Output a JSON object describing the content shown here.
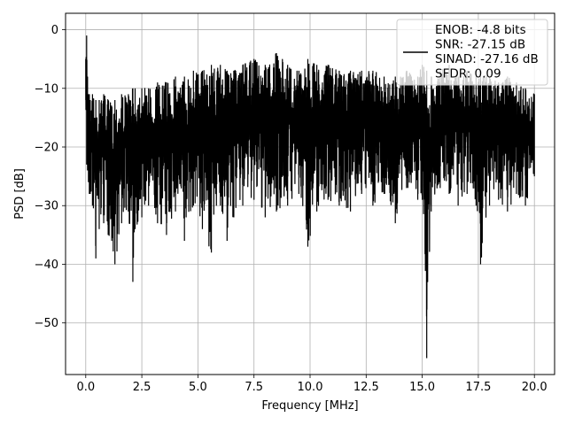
{
  "chart_data": {
    "type": "line",
    "title": "",
    "xlabel": "Frequency [MHz]",
    "ylabel": "PSD [dB]",
    "xlim": [
      -0.9,
      20.9
    ],
    "ylim": [
      -58.8,
      2.8
    ],
    "x_ticks": [
      0.0,
      2.5,
      5.0,
      7.5,
      10.0,
      12.5,
      15.0,
      17.5,
      20.0
    ],
    "x_tick_labels": [
      "0.0",
      "2.5",
      "5.0",
      "7.5",
      "10.0",
      "12.5",
      "15.0",
      "17.5",
      "20.0"
    ],
    "y_ticks": [
      0,
      -10,
      -20,
      -30,
      -40,
      -50
    ],
    "y_tick_labels": [
      "0",
      "−10",
      "−20",
      "−30",
      "−40",
      "−50"
    ],
    "grid": true,
    "legend_position": "top-right",
    "series": [
      {
        "name": "ENOB: -4.8 bits\nSNR: -27.15 dB\nSINAD: -27.16 dB\nSFDR: 0.09",
        "color": "#000000",
        "x": [
          0.0,
          0.04,
          0.08,
          0.12,
          0.16,
          0.2,
          0.3,
          0.45,
          0.6,
          0.8,
          1.0,
          1.3,
          1.6,
          1.9,
          2.1,
          2.2,
          2.5,
          2.8,
          3.2,
          3.6,
          4.0,
          4.4,
          4.8,
          5.2,
          5.6,
          6.0,
          6.3,
          6.6,
          7.0,
          7.5,
          8.0,
          8.5,
          9.0,
          9.5,
          9.9,
          10.3,
          10.8,
          11.3,
          11.8,
          12.3,
          12.8,
          13.3,
          13.8,
          14.3,
          14.8,
          15.0,
          15.2,
          15.4,
          15.8,
          16.2,
          16.6,
          17.0,
          17.4,
          17.6,
          18.0,
          18.4,
          18.8,
          19.2,
          19.6,
          20.0
        ],
        "y_upper": [
          -5,
          -1,
          -8,
          -11,
          -11,
          -12,
          -11,
          -12,
          -12,
          -11,
          -12,
          -12,
          -11,
          -11,
          -10,
          -10,
          -10,
          -10,
          -9,
          -9,
          -8,
          -8,
          -7,
          -7,
          -6,
          -6,
          -7,
          -7,
          -6,
          -5,
          -6,
          -4,
          -6,
          -7,
          -5,
          -6,
          -6,
          -7,
          -7,
          -7,
          -7,
          -8,
          -8,
          -7,
          -8,
          -6,
          -7,
          -8,
          -7,
          -6,
          -8,
          -7,
          -8,
          -7,
          -8,
          -9,
          -8,
          -9,
          -10,
          -11
        ],
        "y_lower": [
          -12,
          -23,
          -24,
          -26,
          -28,
          -28,
          -30,
          -39,
          -34,
          -33,
          -35,
          -40,
          -33,
          -31,
          -43,
          -34,
          -32,
          -30,
          -33,
          -35,
          -31,
          -36,
          -30,
          -34,
          -38,
          -30,
          -36,
          -32,
          -30,
          -29,
          -32,
          -31,
          -30,
          -28,
          -37,
          -31,
          -29,
          -30,
          -31,
          -28,
          -30,
          -28,
          -33,
          -27,
          -29,
          -29,
          -56,
          -31,
          -27,
          -28,
          -30,
          -28,
          -30,
          -40,
          -30,
          -29,
          -31,
          -28,
          -30,
          -25
        ]
      }
    ]
  }
}
